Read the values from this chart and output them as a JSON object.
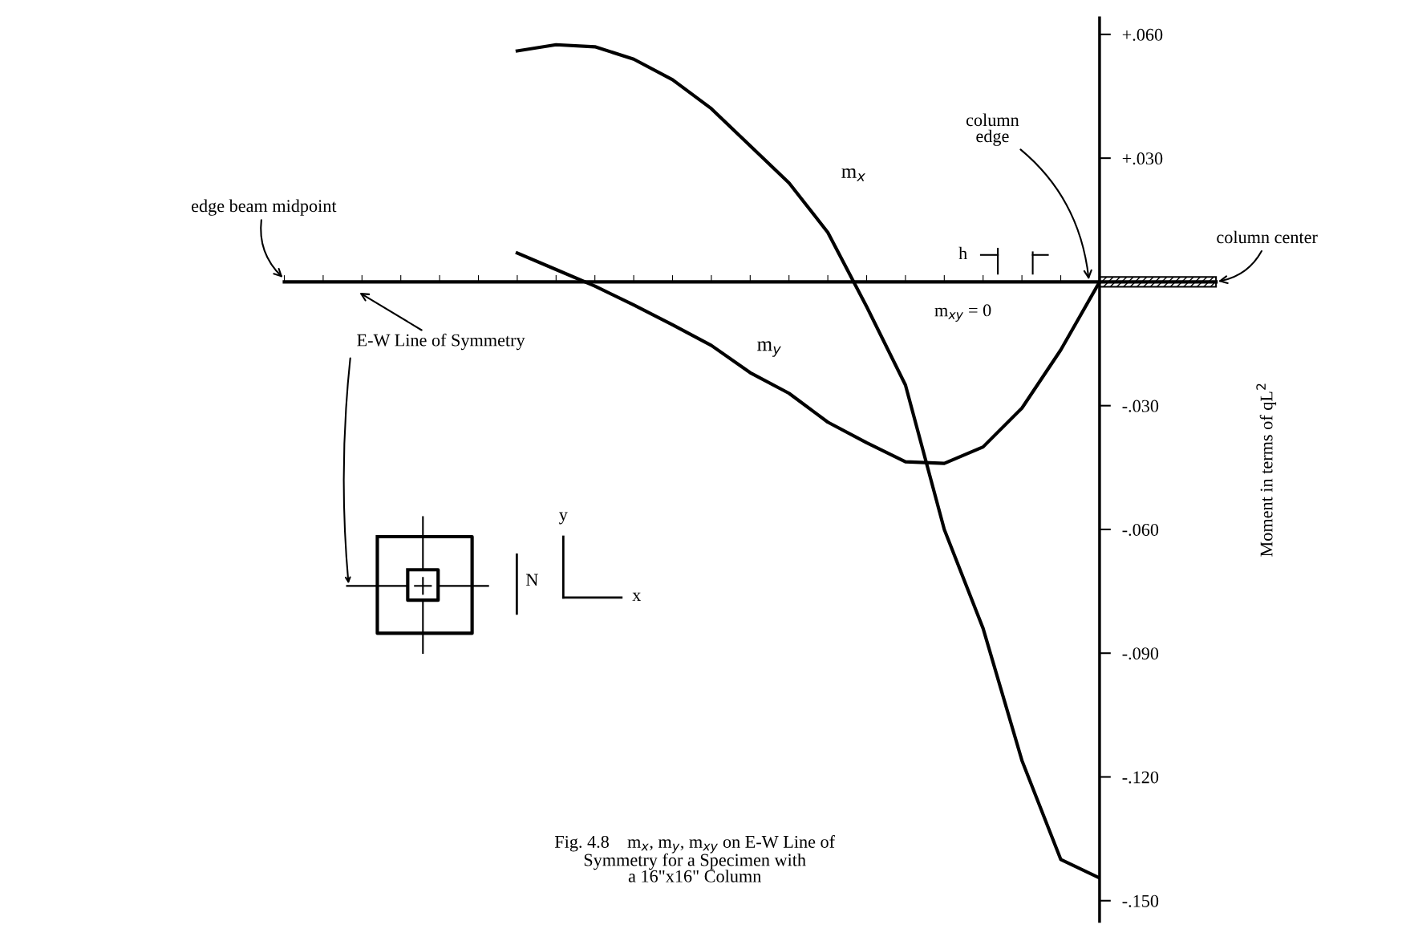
{
  "chart_data": {
    "type": "line",
    "categories": [
      null,
      null,
      null,
      null,
      null,
      null,
      null,
      null,
      null,
      null,
      null,
      null,
      null,
      null,
      null,
      null,
      null,
      null,
      null,
      null,
      null,
      null,
      null,
      null,
      null
    ],
    "series": [
      {
        "name": "m$_{x}$",
        "color": "#000000",
        "values": [
          null,
          null,
          null,
          null,
          null,
          null,
          0.056,
          0.0575,
          0.057,
          0.054,
          0.049,
          0.042,
          0.033,
          0.024,
          0.012,
          -0.006,
          -0.025,
          -0.06,
          -0.084,
          -0.116,
          -0.14,
          -0.1445,
          null,
          null,
          null
        ]
      },
      {
        "name": "m$_{y}$",
        "color": "#000000",
        "values": [
          null,
          null,
          null,
          null,
          null,
          null,
          0.007,
          0.003,
          -0.001,
          -0.0056,
          -0.0104,
          -0.0154,
          -0.022,
          -0.027,
          -0.034,
          -0.039,
          -0.0436,
          -0.044,
          -0.04,
          -0.0306,
          -0.0165,
          0,
          null,
          null,
          null
        ]
      }
    ],
    "ylim": [
      -0.155,
      0.064
    ],
    "yticks": [
      {
        "value": 0.06,
        "label": "+.060"
      },
      {
        "value": 0.03,
        "label": "+.030"
      },
      {
        "value": -0.03,
        "label": "-.030"
      },
      {
        "value": -0.06,
        "label": "-.060"
      },
      {
        "value": -0.09,
        "label": "-.090"
      },
      {
        "value": -0.12,
        "label": "-.120"
      },
      {
        "value": -0.15,
        "label": "-.150"
      }
    ],
    "ylabel": "Moment in terms of qL$^{2}$",
    "tick_labels": "y",
    "grid": false,
    "legend": false,
    "marker": "none",
    "line_style": "solid",
    "annotations": [
      "edge beam midpoint",
      "column\nedge",
      "column center",
      "E-W Line of Symmetry",
      "h",
      "m$_{xy}$ = 0",
      "Fig. 4.8    m$_{x}$, m$_{y}$, m$_{xy}$ on E-W Line of\nSymmetry for a Specimen with\na 16\"x16\" Column",
      "N",
      "y",
      "x"
    ]
  }
}
